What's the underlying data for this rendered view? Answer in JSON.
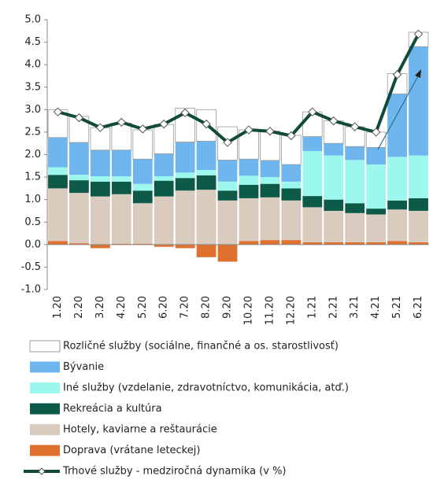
{
  "chart_data": {
    "type": "bar",
    "categories": [
      "1.20",
      "2.20",
      "3.20",
      "4.20",
      "5.20",
      "6.20",
      "7.20",
      "8.20",
      "9.20",
      "10.20",
      "11.20",
      "12.20",
      "1.21",
      "2.21",
      "3.21",
      "4.21",
      "5.21",
      "6.21"
    ],
    "series": [
      {
        "name": "Doprava (vrátane leteckej)",
        "color": "#e0702e",
        "values": [
          0.08,
          0.03,
          -0.08,
          0.02,
          0.02,
          -0.05,
          -0.08,
          -0.28,
          -0.38,
          0.08,
          0.1,
          0.1,
          0.05,
          0.05,
          0.05,
          0.05,
          0.08,
          0.05
        ]
      },
      {
        "name": "Hotely, kaviarne a reštaurácie",
        "color": "#d9cbbd",
        "values": [
          1.17,
          1.12,
          1.07,
          1.1,
          0.9,
          1.07,
          1.2,
          1.22,
          0.98,
          0.95,
          0.95,
          0.88,
          0.78,
          0.7,
          0.65,
          0.62,
          0.7,
          0.7
        ]
      },
      {
        "name": "Rekreácia a kultúra",
        "color": "#0d5a48",
        "values": [
          0.3,
          0.28,
          0.33,
          0.28,
          0.28,
          0.35,
          0.28,
          0.32,
          0.22,
          0.3,
          0.3,
          0.27,
          0.25,
          0.25,
          0.22,
          0.13,
          0.2,
          0.28
        ]
      },
      {
        "name": "Iné služby (vzdelanie, zdravotníctvo, komunikácia, atď.)",
        "color": "#9cf7ee",
        "values": [
          0.17,
          0.12,
          0.12,
          0.12,
          0.15,
          0.1,
          0.12,
          0.12,
          0.2,
          0.2,
          0.15,
          0.15,
          1.0,
          0.98,
          0.96,
          0.98,
          0.97,
          0.95
        ]
      },
      {
        "name": "Bývanie",
        "color": "#6fb6ee",
        "values": [
          0.66,
          0.72,
          0.58,
          0.58,
          0.55,
          0.5,
          0.68,
          0.64,
          0.48,
          0.37,
          0.37,
          0.38,
          0.32,
          0.27,
          0.3,
          0.38,
          1.4,
          2.42
        ]
      },
      {
        "name": "Rozličné služby (sociálne, finančné a os. starostlivosť)",
        "color": "#ffffff",
        "values": [
          0.62,
          0.58,
          0.5,
          0.6,
          0.65,
          0.65,
          0.75,
          0.7,
          0.74,
          0.65,
          0.65,
          0.65,
          0.55,
          0.5,
          0.44,
          0.34,
          0.45,
          0.32
        ]
      }
    ],
    "line": {
      "name": "Trhové služby - medziročná dynamika (v %)",
      "color": "#0f4a3a",
      "values": [
        2.95,
        2.82,
        2.6,
        2.72,
        2.57,
        2.68,
        2.93,
        2.68,
        2.27,
        2.55,
        2.52,
        2.42,
        2.95,
        2.75,
        2.62,
        2.5,
        3.78,
        4.68
      ]
    },
    "ylim": [
      -1,
      5
    ],
    "yticks": [
      {
        "value": 5,
        "label": "5.0"
      },
      4.5,
      {
        "value": 4,
        "label": "4.0"
      },
      3.5,
      {
        "value": 3,
        "label": "3.0"
      },
      2.5,
      {
        "value": 2,
        "label": "2.0"
      },
      1.5,
      {
        "value": 1,
        "label": "1.0"
      },
      0.5,
      {
        "value": 0,
        "label": "0.0"
      },
      -0.5,
      {
        "value": -1,
        "label": "-1.0"
      }
    ]
  }
}
